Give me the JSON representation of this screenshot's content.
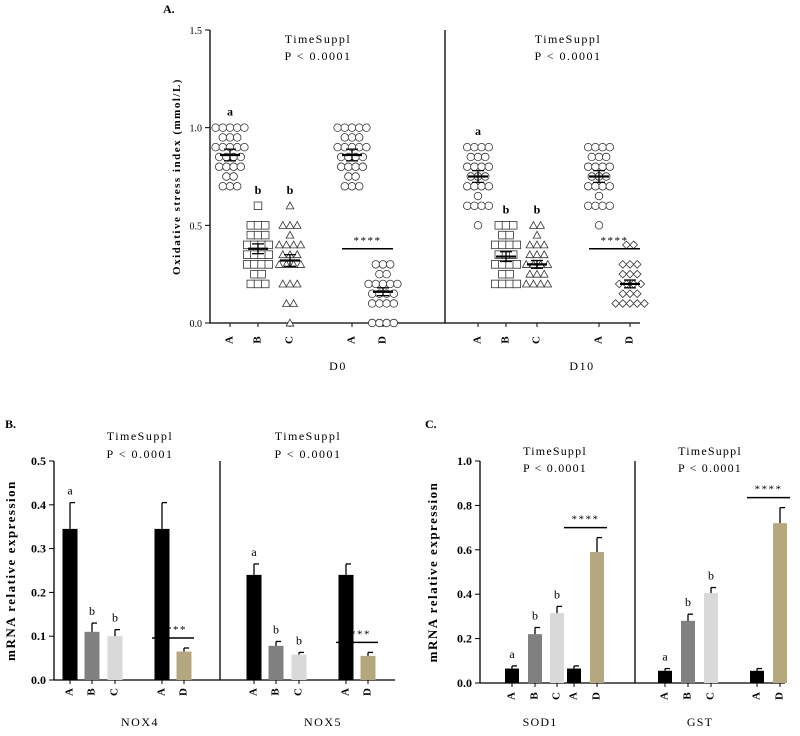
{
  "chart_data": [
    {
      "id": "A",
      "type": "scatter",
      "panel_label": "A.",
      "ylabel": "Oxidative stress index (mmol/L)",
      "ylim": [
        0,
        1.5
      ],
      "yticks": [
        "0.0",
        "0.5",
        "1.0",
        "1.5"
      ],
      "ytick_values": [
        0,
        0.5,
        1.0,
        1.5
      ],
      "sections": [
        {
          "xlabel": "D0",
          "test_label": "TimeSuppl",
          "p_label": "P < 0.0001",
          "groups": [
            {
              "category": "A",
              "marker": "circle",
              "mean": 0.86,
              "sem": 0.03,
              "letter": "a",
              "points": [
                1.0,
                1.0,
                1.0,
                1.0,
                1.0,
                0.95,
                0.95,
                0.95,
                0.9,
                0.9,
                0.9,
                0.9,
                0.9,
                0.85,
                0.85,
                0.85,
                0.85,
                0.8,
                0.8,
                0.8,
                0.8,
                0.75,
                0.75,
                0.7,
                0.7,
                0.7
              ]
            },
            {
              "category": "B",
              "marker": "square",
              "mean": 0.38,
              "sem": 0.025,
              "letter": "b",
              "points": [
                0.6,
                0.5,
                0.5,
                0.5,
                0.45,
                0.45,
                0.45,
                0.4,
                0.4,
                0.4,
                0.4,
                0.35,
                0.35,
                0.35,
                0.35,
                0.3,
                0.3,
                0.3,
                0.3,
                0.25,
                0.25,
                0.2,
                0.2,
                0.2
              ]
            },
            {
              "category": "C",
              "marker": "triangle",
              "mean": 0.32,
              "sem": 0.03,
              "letter": "b",
              "points": [
                0.6,
                0.5,
                0.5,
                0.5,
                0.45,
                0.4,
                0.4,
                0.4,
                0.4,
                0.35,
                0.35,
                0.35,
                0.3,
                0.3,
                0.3,
                0.3,
                0.2,
                0.2,
                0.2,
                0.1,
                0.1,
                0.0
              ]
            },
            {
              "category": "A",
              "marker": "circle",
              "mean": 0.86,
              "sem": 0.03,
              "letter": "",
              "points": [
                1.0,
                1.0,
                1.0,
                1.0,
                1.0,
                0.95,
                0.95,
                0.95,
                0.9,
                0.9,
                0.9,
                0.9,
                0.9,
                0.85,
                0.85,
                0.85,
                0.85,
                0.8,
                0.8,
                0.8,
                0.8,
                0.75,
                0.75,
                0.7,
                0.7,
                0.7
              ]
            },
            {
              "category": "D",
              "marker": "circle",
              "mean": 0.16,
              "sem": 0.02,
              "letter": "****",
              "points": [
                0.3,
                0.3,
                0.3,
                0.25,
                0.25,
                0.2,
                0.2,
                0.2,
                0.2,
                0.2,
                0.15,
                0.15,
                0.15,
                0.15,
                0.1,
                0.1,
                0.1,
                0.1,
                0.0,
                0.0,
                0.0,
                0.0
              ],
              "bracket": true
            }
          ]
        },
        {
          "xlabel": "D10",
          "test_label": "TimeSuppl",
          "p_label": "P < 0.0001",
          "groups": [
            {
              "category": "A",
              "marker": "circle",
              "mean": 0.75,
              "sem": 0.03,
              "letter": "a",
              "points": [
                0.9,
                0.9,
                0.9,
                0.9,
                0.85,
                0.85,
                0.85,
                0.8,
                0.8,
                0.8,
                0.8,
                0.75,
                0.75,
                0.75,
                0.7,
                0.7,
                0.7,
                0.7,
                0.65,
                0.6,
                0.6,
                0.6,
                0.6,
                0.5
              ]
            },
            {
              "category": "B",
              "marker": "square",
              "mean": 0.34,
              "sem": 0.025,
              "letter": "b",
              "points": [
                0.5,
                0.5,
                0.5,
                0.45,
                0.45,
                0.4,
                0.4,
                0.4,
                0.4,
                0.35,
                0.35,
                0.35,
                0.3,
                0.3,
                0.3,
                0.3,
                0.25,
                0.25,
                0.2,
                0.2,
                0.2,
                0.2
              ]
            },
            {
              "category": "C",
              "marker": "triangle",
              "mean": 0.3,
              "sem": 0.02,
              "letter": "b",
              "points": [
                0.5,
                0.5,
                0.45,
                0.4,
                0.4,
                0.4,
                0.35,
                0.35,
                0.35,
                0.3,
                0.3,
                0.3,
                0.3,
                0.25,
                0.25,
                0.25,
                0.2,
                0.2,
                0.2,
                0.2
              ]
            },
            {
              "category": "A",
              "marker": "circle",
              "mean": 0.75,
              "sem": 0.03,
              "letter": "",
              "points": [
                0.9,
                0.9,
                0.9,
                0.9,
                0.85,
                0.85,
                0.85,
                0.8,
                0.8,
                0.8,
                0.8,
                0.75,
                0.75,
                0.75,
                0.7,
                0.7,
                0.7,
                0.7,
                0.65,
                0.6,
                0.6,
                0.6,
                0.6,
                0.5
              ]
            },
            {
              "category": "D",
              "marker": "diamond",
              "mean": 0.2,
              "sem": 0.02,
              "letter": "****",
              "points": [
                0.4,
                0.4,
                0.3,
                0.3,
                0.3,
                0.25,
                0.25,
                0.25,
                0.2,
                0.2,
                0.2,
                0.2,
                0.15,
                0.15,
                0.15,
                0.1,
                0.1,
                0.1,
                0.1,
                0.1
              ],
              "bracket": true
            }
          ]
        }
      ]
    },
    {
      "id": "B",
      "type": "bar",
      "panel_label": "B.",
      "ylabel": "mRNA relative expression",
      "ylim": [
        0,
        0.5
      ],
      "yticks": [
        "0.0",
        "0.1",
        "0.2",
        "0.3",
        "0.4",
        "0.5"
      ],
      "ytick_values": [
        0,
        0.1,
        0.2,
        0.3,
        0.4,
        0.5
      ],
      "sections": [
        {
          "xlabel": "NOX4",
          "test_label": "TimeSuppl",
          "p_label": "P < 0.0001",
          "groups": [
            {
              "category": "A",
              "value": 0.345,
              "err": 0.06,
              "color": "#000000",
              "letter": "a"
            },
            {
              "category": "B",
              "value": 0.11,
              "err": 0.02,
              "color": "#808080",
              "letter": "b"
            },
            {
              "category": "C",
              "value": 0.1,
              "err": 0.015,
              "color": "#d9d9d9",
              "letter": "b"
            },
            {
              "category": "A",
              "value": 0.345,
              "err": 0.06,
              "color": "#000000",
              "letter": ""
            },
            {
              "category": "D",
              "value": 0.065,
              "err": 0.008,
              "color": "#b5a77e",
              "letter": "****",
              "bracket": true
            }
          ]
        },
        {
          "xlabel": "NOX5",
          "test_label": "TimeSuppl",
          "p_label": "P < 0.0001",
          "groups": [
            {
              "category": "A",
              "value": 0.24,
              "err": 0.025,
              "color": "#000000",
              "letter": "a"
            },
            {
              "category": "B",
              "value": 0.078,
              "err": 0.01,
              "color": "#808080",
              "letter": "b"
            },
            {
              "category": "C",
              "value": 0.058,
              "err": 0.005,
              "color": "#d9d9d9",
              "letter": "b"
            },
            {
              "category": "A",
              "value": 0.24,
              "err": 0.025,
              "color": "#000000",
              "letter": ""
            },
            {
              "category": "D",
              "value": 0.055,
              "err": 0.008,
              "color": "#b5a77e",
              "letter": "****",
              "bracket": true
            }
          ]
        }
      ]
    },
    {
      "id": "C",
      "type": "bar",
      "panel_label": "C.",
      "ylabel": "mRNA relative expression",
      "ylim": [
        0,
        1.0
      ],
      "yticks": [
        "0.0",
        "0.2",
        "0.4",
        "0.6",
        "0.8",
        "1.0"
      ],
      "ytick_values": [
        0,
        0.2,
        0.4,
        0.6,
        0.8,
        1.0
      ],
      "sections": [
        {
          "xlabel": "SOD1",
          "test_label": "TimeSuppl",
          "p_label": "P < 0.0001",
          "groups": [
            {
              "category": "A",
              "value": 0.065,
              "err": 0.012,
              "color": "#000000",
              "letter": "a"
            },
            {
              "category": "B",
              "value": 0.22,
              "err": 0.03,
              "color": "#808080",
              "letter": "b"
            },
            {
              "category": "C",
              "value": 0.315,
              "err": 0.03,
              "color": "#d9d9d9",
              "letter": "b"
            },
            {
              "category": "A",
              "value": 0.065,
              "err": 0.012,
              "color": "#000000",
              "letter": ""
            },
            {
              "category": "D",
              "value": 0.59,
              "err": 0.065,
              "color": "#b5a77e",
              "letter": "****",
              "bracket": true
            }
          ]
        },
        {
          "xlabel": "GST",
          "test_label": "TimeSuppl",
          "p_label": "P < 0.0001",
          "groups": [
            {
              "category": "A",
              "value": 0.055,
              "err": 0.01,
              "color": "#000000",
              "letter": "a"
            },
            {
              "category": "B",
              "value": 0.28,
              "err": 0.03,
              "color": "#808080",
              "letter": "b"
            },
            {
              "category": "C",
              "value": 0.405,
              "err": 0.025,
              "color": "#d9d9d9",
              "letter": "b"
            },
            {
              "category": "A",
              "value": 0.055,
              "err": 0.01,
              "color": "#000000",
              "letter": ""
            },
            {
              "category": "D",
              "value": 0.72,
              "err": 0.07,
              "color": "#b5a77e",
              "letter": "****",
              "bracket": true
            }
          ]
        }
      ]
    }
  ]
}
